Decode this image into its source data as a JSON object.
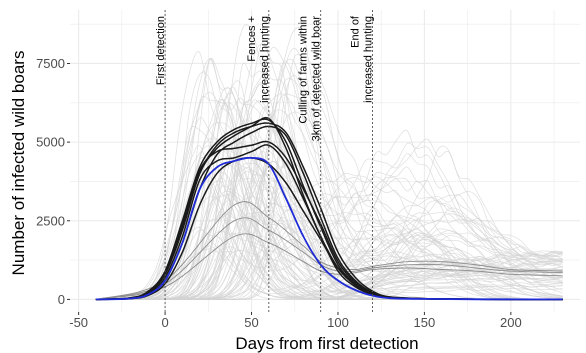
{
  "chart_data": {
    "type": "line",
    "title": "",
    "xlabel": "Days from first detection",
    "ylabel": "Number of infected wild boars",
    "xlim": [
      -55,
      240
    ],
    "ylim": [
      -400,
      9200
    ],
    "grid": true,
    "x_ticks": [
      -50,
      0,
      50,
      100,
      150,
      200
    ],
    "x_tick_labels": [
      "-50",
      "0",
      "50",
      "100",
      "150",
      "200"
    ],
    "y_ticks": [
      0,
      2500,
      5000,
      7500
    ],
    "y_tick_labels": [
      "0",
      "2500",
      "5000",
      "7500"
    ],
    "vlines": [
      {
        "x": 0,
        "lines": [
          "First detection"
        ]
      },
      {
        "x": 60,
        "lines": [
          "Fences +",
          "increased hunting"
        ]
      },
      {
        "x": 90,
        "lines": [
          "Culling of farms within",
          "3km of detected wild boar"
        ]
      },
      {
        "x": 120,
        "lines": [
          "End of",
          "increased hunting"
        ]
      }
    ],
    "colors": {
      "background_runs": "#d3d3d3",
      "late_runs": "#8c8c8c",
      "highlight_runs": "#1a1a1a",
      "median": "#1f2bd6",
      "grid": "#ebebeb",
      "vline": "#555555"
    },
    "series": [
      {
        "style": "highlight",
        "x": [
          -40,
          -20,
          -10,
          0,
          10,
          20,
          30,
          40,
          50,
          60,
          70,
          80,
          90,
          100,
          110,
          120,
          130,
          150,
          180,
          230
        ],
        "y": [
          0,
          50,
          250,
          900,
          2500,
          4200,
          5000,
          5400,
          5600,
          5700,
          5000,
          3600,
          2300,
          1100,
          500,
          200,
          60,
          20,
          5,
          0
        ]
      },
      {
        "style": "highlight",
        "x": [
          -40,
          -20,
          -10,
          0,
          10,
          20,
          30,
          40,
          50,
          60,
          70,
          80,
          90,
          100,
          110,
          120,
          130,
          150,
          180,
          230
        ],
        "y": [
          0,
          40,
          200,
          800,
          2200,
          4000,
          4800,
          5200,
          5500,
          5750,
          4800,
          3300,
          2000,
          900,
          400,
          150,
          50,
          15,
          5,
          0
        ]
      },
      {
        "style": "highlight",
        "x": [
          -40,
          -20,
          -10,
          0,
          10,
          20,
          30,
          40,
          50,
          60,
          70,
          80,
          90,
          100,
          110,
          120,
          130,
          150,
          180,
          230
        ],
        "y": [
          0,
          30,
          150,
          600,
          1800,
          3500,
          4600,
          5000,
          5300,
          5500,
          5200,
          4000,
          2600,
          1300,
          600,
          220,
          70,
          20,
          5,
          0
        ]
      },
      {
        "style": "highlight",
        "x": [
          -40,
          -20,
          -10,
          0,
          10,
          20,
          30,
          40,
          50,
          60,
          70,
          80,
          90,
          100,
          110,
          120,
          130,
          150,
          180,
          230
        ],
        "y": [
          0,
          35,
          180,
          700,
          2000,
          3800,
          4400,
          4500,
          4700,
          4900,
          4300,
          3200,
          2000,
          1000,
          450,
          180,
          60,
          20,
          5,
          0
        ]
      },
      {
        "style": "highlight",
        "x": [
          -40,
          -20,
          -10,
          0,
          10,
          20,
          30,
          40,
          50,
          60,
          70,
          80,
          90,
          100,
          110,
          120,
          130,
          150,
          180,
          230
        ],
        "y": [
          0,
          45,
          220,
          850,
          2400,
          4100,
          4700,
          4800,
          4900,
          5000,
          4500,
          3500,
          2400,
          1200,
          550,
          200,
          65,
          20,
          5,
          0
        ]
      },
      {
        "style": "highlight",
        "x": [
          -40,
          -20,
          -10,
          0,
          10,
          20,
          30,
          40,
          50,
          60,
          70,
          80,
          90,
          100,
          110,
          120,
          130,
          150,
          180,
          230
        ],
        "y": [
          0,
          25,
          120,
          500,
          1500,
          3000,
          4000,
          4400,
          4500,
          4300,
          3700,
          2800,
          1900,
          1000,
          500,
          200,
          70,
          25,
          5,
          0
        ]
      },
      {
        "style": "highlight",
        "x": [
          -40,
          -20,
          -10,
          0,
          10,
          20,
          30,
          40,
          50,
          60,
          70,
          80,
          90,
          100,
          110,
          120,
          130,
          150,
          180,
          230
        ],
        "y": [
          0,
          40,
          210,
          820,
          2300,
          4000,
          4900,
          5300,
          5500,
          5600,
          5300,
          4200,
          2900,
          1500,
          700,
          260,
          80,
          25,
          5,
          0
        ]
      },
      {
        "style": "median",
        "x": [
          -40,
          -20,
          -10,
          0,
          10,
          20,
          30,
          40,
          50,
          60,
          70,
          80,
          90,
          100,
          110,
          120,
          130,
          150,
          180,
          230
        ],
        "y": [
          0,
          30,
          150,
          600,
          1800,
          3500,
          4200,
          4400,
          4500,
          4300,
          3200,
          2000,
          1100,
          600,
          300,
          120,
          40,
          15,
          5,
          0
        ]
      },
      {
        "style": "late",
        "x": [
          -40,
          0,
          40,
          60,
          80,
          90,
          100,
          110,
          120,
          140,
          160,
          180,
          200,
          230
        ],
        "y": [
          0,
          500,
          2500,
          2200,
          1500,
          1100,
          900,
          900,
          1000,
          1100,
          1100,
          1000,
          900,
          850
        ]
      },
      {
        "style": "late",
        "x": [
          -40,
          0,
          40,
          60,
          80,
          90,
          100,
          110,
          120,
          140,
          160,
          180,
          200,
          230
        ],
        "y": [
          0,
          400,
          2000,
          1800,
          1200,
          900,
          800,
          850,
          950,
          1000,
          950,
          900,
          800,
          750
        ]
      },
      {
        "style": "late",
        "x": [
          -40,
          0,
          40,
          60,
          80,
          90,
          100,
          110,
          120,
          140,
          160,
          180,
          200,
          230
        ],
        "y": [
          0,
          600,
          3000,
          2600,
          1700,
          1200,
          1000,
          950,
          1050,
          1200,
          1200,
          1100,
          950,
          900
        ]
      }
    ]
  }
}
